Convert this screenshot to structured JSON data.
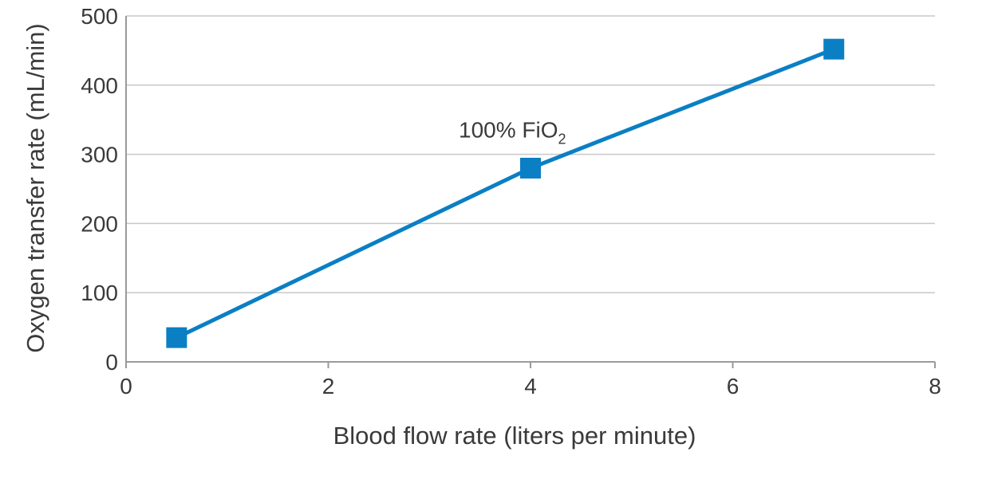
{
  "chart_data": {
    "type": "line",
    "xlabel": "Blood flow rate (liters per minute)",
    "ylabel": "Oxygen transfer rate (mL/min)",
    "xlim": [
      0,
      8
    ],
    "ylim": [
      0,
      500
    ],
    "x_ticks": [
      "0",
      "2",
      "4",
      "6",
      "8"
    ],
    "y_ticks": [
      "0",
      "100",
      "200",
      "300",
      "400",
      "500"
    ],
    "grid": "horizontal",
    "series": [
      {
        "x": [
          0.5,
          4,
          7
        ],
        "y": [
          35,
          280,
          452
        ],
        "color": "#0a7fc4",
        "marker": "square"
      }
    ],
    "annotations": [
      {
        "text": "100% FiO",
        "subscript": "2",
        "x": 4,
        "y": 330
      }
    ]
  }
}
